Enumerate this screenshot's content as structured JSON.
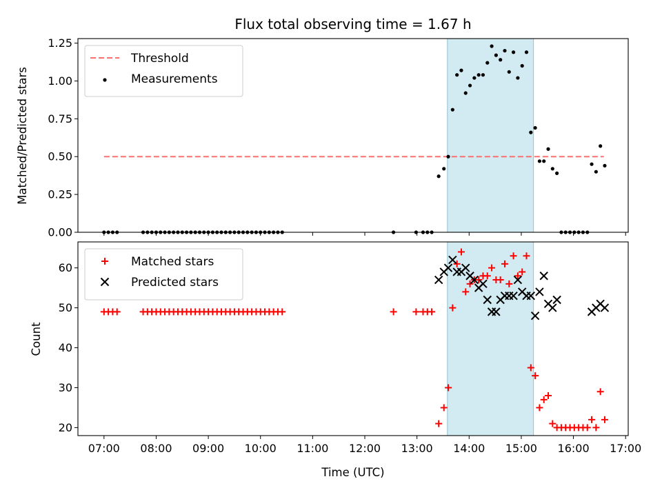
{
  "chart_data": {
    "type": "scatter",
    "title": "Flux total observing time = 1.67 h",
    "xlabel": "Time (UTC)",
    "x_ticks": [
      "07:00",
      "08:00",
      "09:00",
      "10:00",
      "11:00",
      "12:00",
      "13:00",
      "14:00",
      "15:00",
      "16:00",
      "17:00"
    ],
    "shaded_region": {
      "start": "13:35",
      "end": "15:14",
      "color": "#add8e6"
    },
    "panels": [
      {
        "ylabel": "Matched/Predicted stars",
        "ylim": [
          0,
          1.28
        ],
        "yticks": [
          "0.00",
          "0.25",
          "0.50",
          "0.75",
          "1.00",
          "1.25"
        ],
        "legend_position": "upper-left",
        "threshold": {
          "name": "Threshold",
          "value": 0.5,
          "x_start": "07:00",
          "x_end": "16:35",
          "color": "#ff6e6e"
        },
        "series": [
          {
            "name": "Measurements",
            "marker": "dot",
            "color": "#000000",
            "points": [
              [
                "07:00",
                0
              ],
              [
                "07:05",
                0
              ],
              [
                "07:10",
                0
              ],
              [
                "07:15",
                0
              ],
              [
                "07:45",
                0
              ],
              [
                "07:50",
                0
              ],
              [
                "07:55",
                0
              ],
              [
                "08:00",
                0
              ],
              [
                "08:05",
                0
              ],
              [
                "08:10",
                0
              ],
              [
                "08:15",
                0
              ],
              [
                "08:20",
                0
              ],
              [
                "08:25",
                0
              ],
              [
                "08:30",
                0
              ],
              [
                "08:35",
                0
              ],
              [
                "08:40",
                0
              ],
              [
                "08:45",
                0
              ],
              [
                "08:50",
                0
              ],
              [
                "08:55",
                0
              ],
              [
                "09:00",
                0
              ],
              [
                "09:05",
                0
              ],
              [
                "09:10",
                0
              ],
              [
                "09:15",
                0
              ],
              [
                "09:20",
                0
              ],
              [
                "09:25",
                0
              ],
              [
                "09:30",
                0
              ],
              [
                "09:35",
                0
              ],
              [
                "09:40",
                0
              ],
              [
                "09:45",
                0
              ],
              [
                "09:50",
                0
              ],
              [
                "09:55",
                0
              ],
              [
                "10:00",
                0
              ],
              [
                "10:05",
                0
              ],
              [
                "10:10",
                0
              ],
              [
                "10:15",
                0
              ],
              [
                "10:20",
                0
              ],
              [
                "10:25",
                0
              ],
              [
                "12:33",
                0
              ],
              [
                "12:59",
                0
              ],
              [
                "13:07",
                0
              ],
              [
                "13:12",
                0
              ],
              [
                "13:17",
                0
              ],
              [
                "13:25",
                0.37
              ],
              [
                "13:31",
                0.42
              ],
              [
                "13:36",
                0.5
              ],
              [
                "13:41",
                0.81
              ],
              [
                "13:46",
                1.04
              ],
              [
                "13:51",
                1.07
              ],
              [
                "13:56",
                0.92
              ],
              [
                "14:01",
                0.97
              ],
              [
                "14:06",
                1.02
              ],
              [
                "14:11",
                1.04
              ],
              [
                "14:16",
                1.04
              ],
              [
                "14:21",
                1.12
              ],
              [
                "14:26",
                1.23
              ],
              [
                "14:31",
                1.17
              ],
              [
                "14:36",
                1.14
              ],
              [
                "14:41",
                1.2
              ],
              [
                "14:46",
                1.06
              ],
              [
                "14:51",
                1.19
              ],
              [
                "14:56",
                1.02
              ],
              [
                "15:01",
                1.1
              ],
              [
                "15:06",
                1.19
              ],
              [
                "15:11",
                0.66
              ],
              [
                "15:16",
                0.69
              ],
              [
                "15:21",
                0.47
              ],
              [
                "15:26",
                0.47
              ],
              [
                "15:31",
                0.55
              ],
              [
                "15:36",
                0.42
              ],
              [
                "15:41",
                0.39
              ],
              [
                "15:46",
                0
              ],
              [
                "15:51",
                0
              ],
              [
                "15:56",
                0
              ],
              [
                "16:01",
                0
              ],
              [
                "16:06",
                0
              ],
              [
                "16:11",
                0
              ],
              [
                "16:16",
                0
              ],
              [
                "16:21",
                0.45
              ],
              [
                "16:26",
                0.4
              ],
              [
                "16:31",
                0.57
              ],
              [
                "16:36",
                0.44
              ]
            ]
          }
        ]
      },
      {
        "ylabel": "Count",
        "ylim": [
          18,
          66.5
        ],
        "yticks": [
          "20",
          "30",
          "40",
          "50",
          "60"
        ],
        "legend_position": "upper-left",
        "series": [
          {
            "name": "Matched stars",
            "marker": "plus",
            "color": "#ff0000",
            "points": [
              [
                "07:00",
                49
              ],
              [
                "07:05",
                49
              ],
              [
                "07:10",
                49
              ],
              [
                "07:15",
                49
              ],
              [
                "07:45",
                49
              ],
              [
                "07:50",
                49
              ],
              [
                "07:55",
                49
              ],
              [
                "08:00",
                49
              ],
              [
                "08:05",
                49
              ],
              [
                "08:10",
                49
              ],
              [
                "08:15",
                49
              ],
              [
                "08:20",
                49
              ],
              [
                "08:25",
                49
              ],
              [
                "08:30",
                49
              ],
              [
                "08:35",
                49
              ],
              [
                "08:40",
                49
              ],
              [
                "08:45",
                49
              ],
              [
                "08:50",
                49
              ],
              [
                "08:55",
                49
              ],
              [
                "09:00",
                49
              ],
              [
                "09:05",
                49
              ],
              [
                "09:10",
                49
              ],
              [
                "09:15",
                49
              ],
              [
                "09:20",
                49
              ],
              [
                "09:25",
                49
              ],
              [
                "09:30",
                49
              ],
              [
                "09:35",
                49
              ],
              [
                "09:40",
                49
              ],
              [
                "09:45",
                49
              ],
              [
                "09:50",
                49
              ],
              [
                "09:55",
                49
              ],
              [
                "10:00",
                49
              ],
              [
                "10:05",
                49
              ],
              [
                "10:10",
                49
              ],
              [
                "10:15",
                49
              ],
              [
                "10:20",
                49
              ],
              [
                "10:25",
                49
              ],
              [
                "12:33",
                49
              ],
              [
                "12:59",
                49
              ],
              [
                "13:07",
                49
              ],
              [
                "13:12",
                49
              ],
              [
                "13:17",
                49
              ],
              [
                "13:25",
                21
              ],
              [
                "13:31",
                25
              ],
              [
                "13:36",
                30
              ],
              [
                "13:41",
                50
              ],
              [
                "13:46",
                61
              ],
              [
                "13:51",
                64
              ],
              [
                "13:56",
                54
              ],
              [
                "14:01",
                56
              ],
              [
                "14:06",
                57
              ],
              [
                "14:11",
                57
              ],
              [
                "14:16",
                58
              ],
              [
                "14:21",
                58
              ],
              [
                "14:26",
                60
              ],
              [
                "14:31",
                57
              ],
              [
                "14:36",
                57
              ],
              [
                "14:41",
                61
              ],
              [
                "14:46",
                56
              ],
              [
                "14:51",
                63
              ],
              [
                "14:56",
                58
              ],
              [
                "15:01",
                59
              ],
              [
                "15:06",
                63
              ],
              [
                "15:11",
                35
              ],
              [
                "15:16",
                33
              ],
              [
                "15:21",
                25
              ],
              [
                "15:26",
                27
              ],
              [
                "15:31",
                28
              ],
              [
                "15:36",
                21
              ],
              [
                "15:41",
                20
              ],
              [
                "15:46",
                20
              ],
              [
                "15:51",
                20
              ],
              [
                "15:56",
                20
              ],
              [
                "16:01",
                20
              ],
              [
                "16:06",
                20
              ],
              [
                "16:11",
                20
              ],
              [
                "16:16",
                20
              ],
              [
                "16:21",
                22
              ],
              [
                "16:26",
                20
              ],
              [
                "16:31",
                29
              ],
              [
                "16:36",
                22
              ]
            ]
          },
          {
            "name": "Predicted stars",
            "marker": "x",
            "color": "#000000",
            "points": [
              [
                "13:25",
                57
              ],
              [
                "13:31",
                59
              ],
              [
                "13:36",
                60
              ],
              [
                "13:41",
                62
              ],
              [
                "13:46",
                59
              ],
              [
                "13:51",
                59
              ],
              [
                "13:56",
                60
              ],
              [
                "14:01",
                58
              ],
              [
                "14:06",
                57
              ],
              [
                "14:11",
                55
              ],
              [
                "14:16",
                56
              ],
              [
                "14:21",
                52
              ],
              [
                "14:26",
                49
              ],
              [
                "14:31",
                49
              ],
              [
                "14:36",
                52
              ],
              [
                "14:41",
                53
              ],
              [
                "14:46",
                53
              ],
              [
                "14:51",
                53
              ],
              [
                "14:56",
                57
              ],
              [
                "15:01",
                54
              ],
              [
                "15:06",
                53
              ],
              [
                "15:11",
                53
              ],
              [
                "15:16",
                48
              ],
              [
                "15:21",
                54
              ],
              [
                "15:26",
                58
              ],
              [
                "15:31",
                51
              ],
              [
                "15:36",
                50
              ],
              [
                "15:41",
                52
              ],
              [
                "16:21",
                49
              ],
              [
                "16:26",
                50
              ],
              [
                "16:31",
                51
              ],
              [
                "16:36",
                50
              ]
            ]
          }
        ]
      }
    ]
  }
}
